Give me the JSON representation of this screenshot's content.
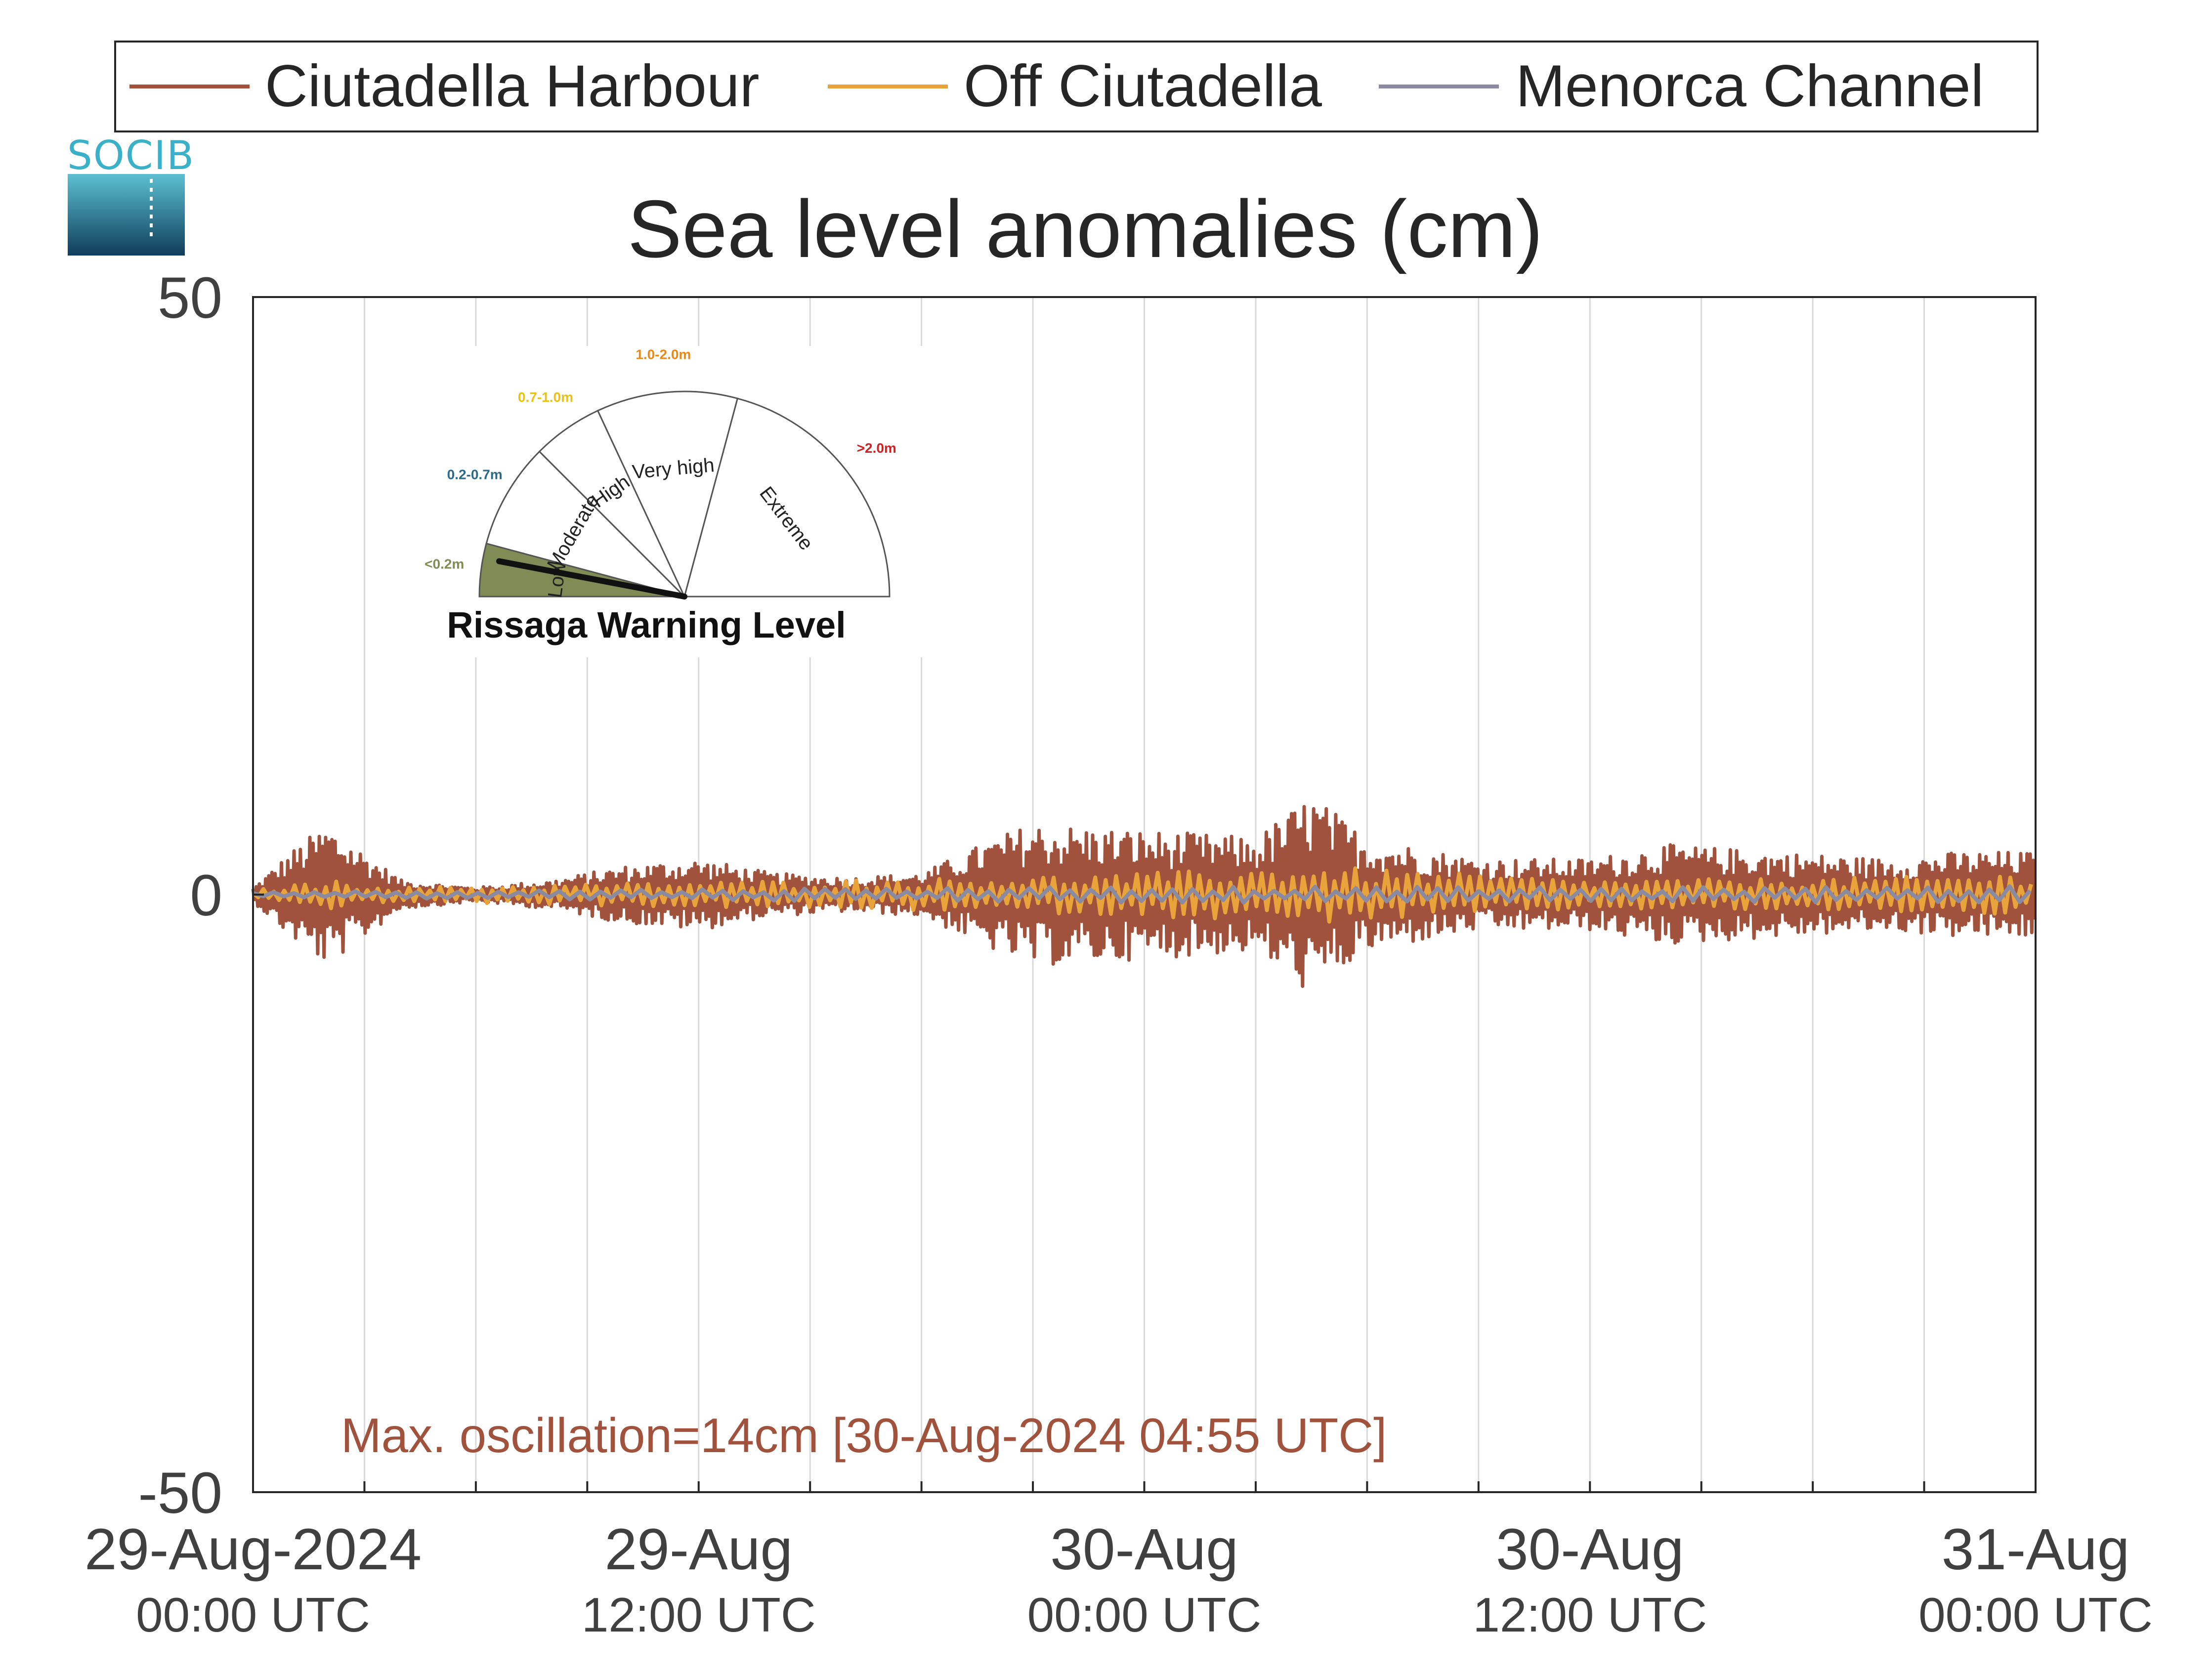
{
  "logo": {
    "text": "SOCIB"
  },
  "legend": {
    "items": [
      {
        "label": "Ciutadella Harbour",
        "color": "#a0523c"
      },
      {
        "label": "Off Ciutadella",
        "color": "#e8a33a"
      },
      {
        "label": "Menorca Channel",
        "color": "#8a8aa0"
      }
    ]
  },
  "gauge": {
    "title": "Rissaga Warning Level",
    "current_level": "Low",
    "needle_fraction": 0.06,
    "sectors": [
      {
        "name": "Low",
        "range": "<0.2m",
        "color": "#7f8c55",
        "range_color": "#7f8c55",
        "active": true
      },
      {
        "name": "Moderate",
        "range": "0.2-0.7m",
        "color": "#ffffff",
        "range_color": "#2c6a8a",
        "active": false
      },
      {
        "name": "High",
        "range": "0.7-1.0m",
        "color": "#ffffff",
        "range_color": "#e8c21a",
        "active": false
      },
      {
        "name": "Very high",
        "range": "1.0-2.0m",
        "color": "#ffffff",
        "range_color": "#e88a1a",
        "active": false
      },
      {
        "name": "Extreme",
        "range": ">2.0m",
        "color": "#ffffff",
        "range_color": "#d22020",
        "active": false
      }
    ]
  },
  "chart_data": {
    "type": "line",
    "title": "Sea level anomalies (cm)",
    "ylim": [
      -50,
      50
    ],
    "yticks": [
      50,
      0,
      -50
    ],
    "ytick_labels": [
      "50",
      "0",
      "-50"
    ],
    "x_unit": "hours since 29-Aug-2024 00:00 UTC",
    "xlim": [
      0,
      48
    ],
    "xticks": [
      {
        "hour": 0,
        "date": "29-Aug-2024",
        "time": "00:00 UTC"
      },
      {
        "hour": 12,
        "date": "29-Aug",
        "time": "12:00 UTC"
      },
      {
        "hour": 24,
        "date": "30-Aug",
        "time": "00:00 UTC"
      },
      {
        "hour": 36,
        "date": "30-Aug",
        "time": "12:00 UTC"
      },
      {
        "hour": 48,
        "date": "31-Aug",
        "time": "00:00 UTC"
      }
    ],
    "grid_hours": [
      3,
      6,
      9,
      12,
      15,
      18,
      21,
      24,
      27,
      30,
      33,
      36,
      39,
      42,
      45
    ],
    "grid": true,
    "legend_position": "top",
    "annotation": {
      "text": "Max. oscillation=14cm [30-Aug-2024 04:55 UTC]",
      "color": "#a0523c"
    },
    "series": [
      {
        "name": "Ciutadella Harbour",
        "color": "#a0523c",
        "envelope": [
          {
            "hour": 0,
            "amplitude": 0.5
          },
          {
            "hour": 1,
            "amplitude": 3
          },
          {
            "hour": 2,
            "amplitude": 5
          },
          {
            "hour": 3,
            "amplitude": 3
          },
          {
            "hour": 4,
            "amplitude": 1
          },
          {
            "hour": 6,
            "amplitude": 0.5
          },
          {
            "hour": 8,
            "amplitude": 1
          },
          {
            "hour": 10,
            "amplitude": 2
          },
          {
            "hour": 12,
            "amplitude": 2.5
          },
          {
            "hour": 14,
            "amplitude": 1.5
          },
          {
            "hour": 16,
            "amplitude": 1.2
          },
          {
            "hour": 18,
            "amplitude": 1.5
          },
          {
            "hour": 20,
            "amplitude": 4
          },
          {
            "hour": 21,
            "amplitude": 5
          },
          {
            "hour": 24,
            "amplitude": 4.5
          },
          {
            "hour": 27,
            "amplitude": 4
          },
          {
            "hour": 28.5,
            "amplitude": 7
          },
          {
            "hour": 30,
            "amplitude": 4
          },
          {
            "hour": 33,
            "amplitude": 2.5
          },
          {
            "hour": 36,
            "amplitude": 2.5
          },
          {
            "hour": 38,
            "amplitude": 3.5
          },
          {
            "hour": 41,
            "amplitude": 3
          },
          {
            "hour": 44,
            "amplitude": 2.5
          },
          {
            "hour": 46,
            "amplitude": 3
          },
          {
            "hour": 48,
            "amplitude": 3
          }
        ]
      },
      {
        "name": "Off Ciutadella",
        "color": "#e8a33a",
        "envelope": [
          {
            "hour": 0,
            "amplitude": 0.3
          },
          {
            "hour": 2,
            "amplitude": 1
          },
          {
            "hour": 4,
            "amplitude": 0.5
          },
          {
            "hour": 10,
            "amplitude": 0.8
          },
          {
            "hour": 20,
            "amplitude": 1.2
          },
          {
            "hour": 24,
            "amplitude": 1.5
          },
          {
            "hour": 28.5,
            "amplitude": 2
          },
          {
            "hour": 36,
            "amplitude": 1
          },
          {
            "hour": 44,
            "amplitude": 1.2
          },
          {
            "hour": 48,
            "amplitude": 1.5
          }
        ]
      },
      {
        "name": "Menorca Channel",
        "color": "#8a8aa0",
        "envelope": [
          {
            "hour": 0,
            "amplitude": 0.2
          },
          {
            "hour": 12,
            "amplitude": 0.4
          },
          {
            "hour": 24,
            "amplitude": 0.6
          },
          {
            "hour": 36,
            "amplitude": 0.5
          },
          {
            "hour": 48,
            "amplitude": 0.6
          }
        ]
      }
    ]
  }
}
